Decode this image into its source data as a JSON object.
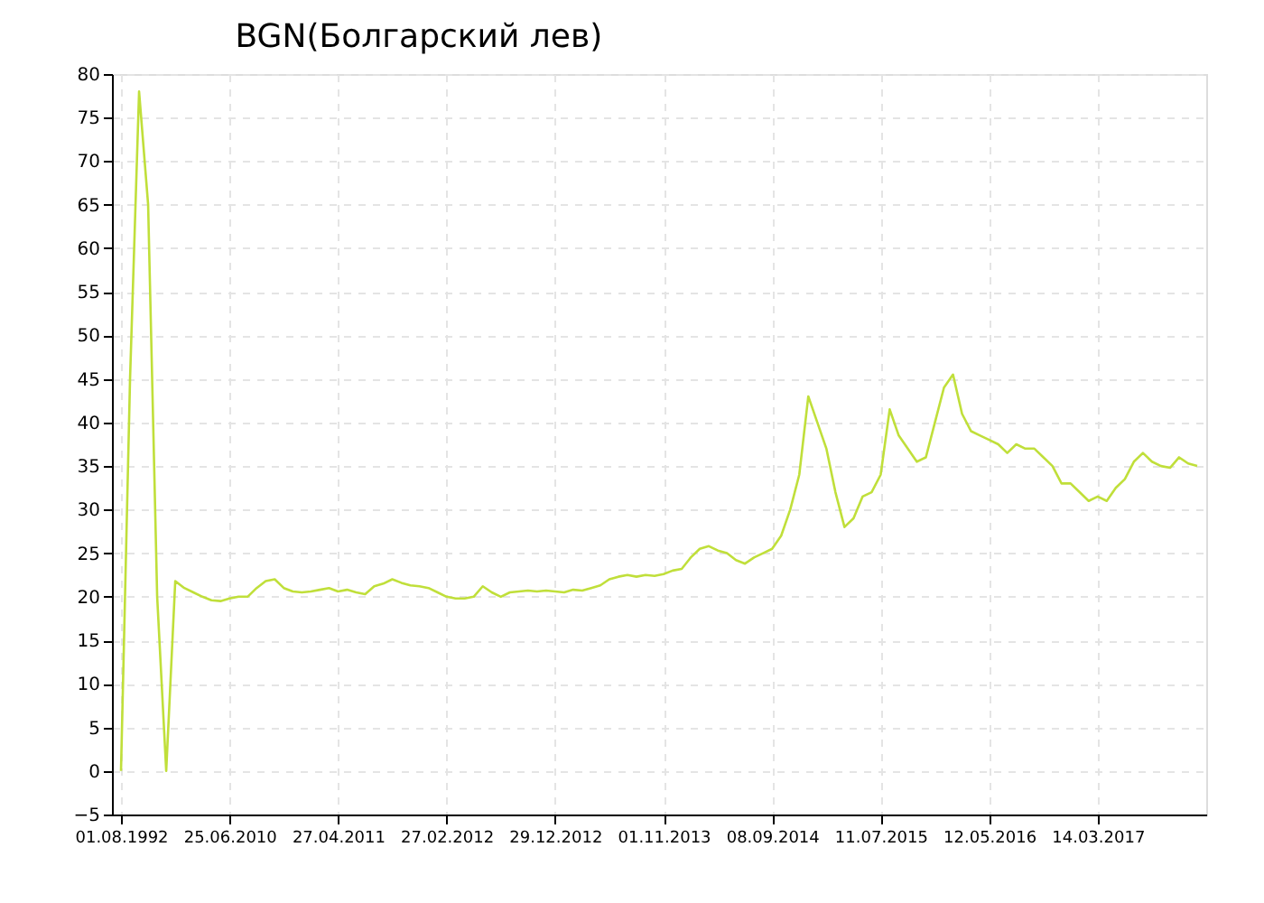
{
  "chart_data": {
    "type": "line",
    "title": "BGN(Болгарский лев)",
    "categories": [
      "01.08.1992",
      null,
      null,
      null,
      null,
      null,
      null,
      null,
      null,
      null,
      null,
      null,
      "25.06.2010",
      null,
      null,
      null,
      null,
      null,
      null,
      null,
      null,
      null,
      null,
      null,
      "27.04.2011",
      null,
      null,
      null,
      null,
      null,
      null,
      null,
      null,
      null,
      null,
      null,
      "27.02.2012",
      null,
      null,
      null,
      null,
      null,
      null,
      null,
      null,
      null,
      null,
      null,
      "29.12.2012",
      null,
      null,
      null,
      null,
      null,
      null,
      null,
      null,
      null,
      null,
      null,
      "01.11.2013",
      null,
      null,
      null,
      null,
      null,
      null,
      null,
      null,
      null,
      null,
      null,
      "08.09.2014",
      null,
      null,
      null,
      null,
      null,
      null,
      null,
      null,
      null,
      null,
      null,
      "11.07.2015",
      null,
      null,
      null,
      null,
      null,
      null,
      null,
      null,
      null,
      null,
      null,
      "12.05.2016",
      null,
      null,
      null,
      null,
      null,
      null,
      null,
      null,
      null,
      null,
      null,
      "14.03.2017",
      null,
      null,
      null,
      null,
      null,
      null,
      null,
      null,
      null,
      null,
      null
    ],
    "series": [
      {
        "color": "#c0df3a",
        "values": [
          0,
          45,
          78,
          65,
          20,
          0,
          21.8,
          21,
          20.5,
          20,
          19.6,
          19.5,
          19.8,
          20,
          20,
          21,
          21.8,
          22,
          21,
          20.6,
          20.5,
          20.6,
          20.8,
          21,
          20.6,
          20.8,
          20.5,
          20.3,
          21.2,
          21.5,
          22,
          21.6,
          21.3,
          21.2,
          21,
          20.5,
          20,
          19.8,
          19.8,
          20,
          21.2,
          20.5,
          20,
          20.5,
          20.6,
          20.7,
          20.6,
          20.7,
          20.6,
          20.5,
          20.8,
          20.7,
          21,
          21.3,
          22,
          22.3,
          22.5,
          22.3,
          22.5,
          22.4,
          22.6,
          23,
          23.2,
          24.5,
          25.5,
          25.8,
          25.3,
          25,
          24.2,
          23.8,
          24.5,
          25,
          25.5,
          27,
          30,
          34,
          43,
          40,
          37,
          32,
          28,
          29,
          31.5,
          32,
          34,
          41.5,
          38.5,
          37,
          35.5,
          36,
          40,
          44,
          45.5,
          41,
          39,
          38.5,
          38,
          37.5,
          36.5,
          37.5,
          37,
          37,
          36,
          35,
          33,
          33,
          32,
          31,
          31.5,
          31,
          32.5,
          33.5,
          35.5,
          36.5,
          35.5,
          35,
          34.8,
          36,
          35.3,
          35
        ]
      }
    ],
    "ylim": [
      -5,
      80
    ],
    "yticks": [
      -5,
      0,
      5,
      10,
      15,
      20,
      25,
      30,
      35,
      40,
      45,
      50,
      55,
      60,
      65,
      70,
      75,
      80
    ],
    "grid": true,
    "legend": false,
    "marker": "none",
    "line_style": "solid"
  }
}
